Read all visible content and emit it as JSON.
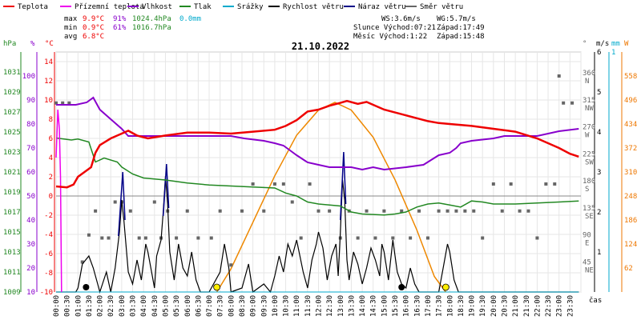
{
  "title": "21.10.2022",
  "legend": [
    {
      "key": "teplota",
      "label": "Teplota",
      "color": "#ee0000"
    },
    {
      "key": "pocitova",
      "label": "Přízemní teplota",
      "color": "#ee00ee"
    },
    {
      "key": "vlhkost",
      "label": "Vlhkost",
      "color": "#8800cc"
    },
    {
      "key": "tlak",
      "label": "Tlak",
      "color": "#228822"
    },
    {
      "key": "srazky",
      "label": "Srážky",
      "color": "#00aacc"
    },
    {
      "key": "rychlost",
      "label": "Rychlost větru",
      "color": "#000000"
    },
    {
      "key": "naraz",
      "label": "Náraz větru",
      "color": "#000088"
    },
    {
      "key": "smer",
      "label": "Směr větru",
      "color": "#666666"
    }
  ],
  "stats": {
    "max": {
      "label": "max",
      "temp": "9.9°C",
      "hum": "91%",
      "press": "1024.4hPa",
      "rain": "0.0mm"
    },
    "min": {
      "label": "min",
      "temp": "0.9°C",
      "hum": "61%",
      "press": "1016.7hPa"
    },
    "avg": {
      "label": "avg",
      "temp": "6.8°C"
    }
  },
  "info": {
    "ws": "WS:3.6m/s",
    "wg": "WG:5.7m/s",
    "slunce": "Slunce Východ:07:21",
    "slunce_zapad": "Západ:17:49",
    "mesic": "Měsíc  Východ:1:22",
    "mesic_zapad": "Západ:15:48"
  },
  "axes": {
    "hpa_unit": "hPa",
    "pct_unit": "%",
    "c_unit": "°C",
    "deg_unit": "°",
    "ms_unit": "m/s",
    "mm_unit": "mm",
    "w_unit": "W",
    "cas": "čas",
    "hpa_ticks": [
      "1031",
      "1029",
      "1027",
      "1025",
      "1023",
      "1021",
      "1019",
      "1017",
      "1015",
      "1013",
      "1011",
      "1009"
    ],
    "pct_ticks": [
      "100",
      "90",
      "80",
      "70",
      "60",
      "50",
      "40",
      "30",
      "20",
      "10"
    ],
    "c_ticks": [
      "14",
      "12",
      "10",
      "8",
      "6",
      "4",
      "2",
      "0",
      "-2",
      "-4",
      "-6",
      "-8",
      "-10"
    ],
    "dir_ticks": [
      {
        "deg": "360",
        "lab": "N"
      },
      {
        "deg": "315",
        "lab": "NW"
      },
      {
        "deg": "270",
        "lab": "W"
      },
      {
        "deg": "225",
        "lab": "SW"
      },
      {
        "deg": "180",
        "lab": "S"
      },
      {
        "deg": "135",
        "lab": "SE"
      },
      {
        "deg": "90",
        "lab": "E"
      },
      {
        "deg": "45",
        "lab": "NE"
      }
    ],
    "ms_ticks": [
      "6",
      "5",
      "4",
      "3",
      "2",
      "1"
    ],
    "mm_top": "1",
    "w_ticks": [
      "558",
      "496",
      "434",
      "372",
      "310",
      "248",
      "186",
      "124",
      "62"
    ],
    "x_ticks": [
      "00:00",
      "00:30",
      "01:00",
      "01:30",
      "02:00",
      "02:30",
      "03:00",
      "03:30",
      "04:00",
      "04:30",
      "05:00",
      "05:30",
      "06:00",
      "06:30",
      "07:00",
      "07:30",
      "08:00",
      "08:30",
      "09:00",
      "09:30",
      "10:00",
      "10:30",
      "11:00",
      "11:30",
      "12:00",
      "12:30",
      "13:00",
      "13:30",
      "14:00",
      "14:30",
      "15:00",
      "15:30",
      "16:00",
      "16:30",
      "17:00",
      "17:30",
      "18:00",
      "18:30",
      "19:00",
      "19:30",
      "20:00",
      "20:30",
      "21:00",
      "21:30",
      "22:00",
      "22:30",
      "23:00",
      "23:30"
    ]
  },
  "chart_data": {
    "type": "line",
    "x_unit": "hour",
    "temperature": [
      [
        0,
        1.0
      ],
      [
        0.5,
        0.9
      ],
      [
        0.8,
        1.2
      ],
      [
        1.0,
        2.0
      ],
      [
        1.3,
        2.5
      ],
      [
        1.6,
        3.0
      ],
      [
        1.8,
        4.5
      ],
      [
        2.0,
        5.3
      ],
      [
        2.5,
        6.0
      ],
      [
        3.0,
        6.5
      ],
      [
        3.3,
        6.8
      ],
      [
        3.7,
        6.3
      ],
      [
        4.2,
        6.0
      ],
      [
        5.0,
        6.3
      ],
      [
        6.0,
        6.6
      ],
      [
        7.0,
        6.6
      ],
      [
        8.0,
        6.5
      ],
      [
        9.0,
        6.7
      ],
      [
        10.0,
        6.9
      ],
      [
        10.5,
        7.3
      ],
      [
        11.0,
        7.9
      ],
      [
        11.5,
        8.8
      ],
      [
        12.0,
        9.0
      ],
      [
        12.5,
        9.4
      ],
      [
        13.0,
        9.7
      ],
      [
        13.3,
        9.9
      ],
      [
        13.8,
        9.6
      ],
      [
        14.2,
        9.8
      ],
      [
        14.5,
        9.5
      ],
      [
        15.0,
        9.0
      ],
      [
        15.5,
        8.7
      ],
      [
        16.0,
        8.4
      ],
      [
        16.5,
        8.1
      ],
      [
        17.0,
        7.8
      ],
      [
        17.5,
        7.6
      ],
      [
        18.0,
        7.5
      ],
      [
        19.0,
        7.3
      ],
      [
        20.0,
        7.0
      ],
      [
        21.0,
        6.7
      ],
      [
        22.0,
        6.0
      ],
      [
        23.0,
        5.0
      ],
      [
        23.5,
        4.4
      ],
      [
        23.9,
        4.1
      ]
    ],
    "apparent_temperature": [
      [
        0,
        4.0
      ],
      [
        0.08,
        9.0
      ],
      [
        0.15,
        7.0
      ],
      [
        0.2,
        2.0
      ],
      [
        0.25,
        -10
      ]
    ],
    "humidity": [
      [
        0,
        88
      ],
      [
        0.5,
        88
      ],
      [
        0.9,
        88
      ],
      [
        1.4,
        89
      ],
      [
        1.7,
        91
      ],
      [
        2.0,
        86
      ],
      [
        2.5,
        82
      ],
      [
        3.0,
        78
      ],
      [
        3.3,
        75
      ],
      [
        6.5,
        75
      ],
      [
        7.0,
        75
      ],
      [
        8.0,
        75
      ],
      [
        8.6,
        74
      ],
      [
        9.5,
        73
      ],
      [
        10.0,
        72
      ],
      [
        10.4,
        71
      ],
      [
        10.7,
        69
      ],
      [
        11.0,
        67
      ],
      [
        11.5,
        64
      ],
      [
        12.0,
        63
      ],
      [
        12.5,
        62
      ],
      [
        13.0,
        62
      ],
      [
        13.5,
        62
      ],
      [
        14.0,
        61
      ],
      [
        14.5,
        62
      ],
      [
        15.0,
        61
      ],
      [
        16.0,
        62
      ],
      [
        16.8,
        63
      ],
      [
        17.5,
        67
      ],
      [
        18.0,
        68
      ],
      [
        18.3,
        70
      ],
      [
        18.5,
        72
      ],
      [
        19.0,
        73
      ],
      [
        20.0,
        74
      ],
      [
        20.5,
        75
      ],
      [
        22.0,
        75
      ],
      [
        22.5,
        76
      ],
      [
        23.0,
        77
      ],
      [
        23.9,
        78
      ]
    ],
    "pressure": [
      [
        0,
        1024.4
      ],
      [
        0.7,
        1024.2
      ],
      [
        1.0,
        1024.3
      ],
      [
        1.5,
        1024.0
      ],
      [
        1.8,
        1022.0
      ],
      [
        2.2,
        1022.4
      ],
      [
        2.8,
        1022.0
      ],
      [
        3.0,
        1021.5
      ],
      [
        3.5,
        1020.8
      ],
      [
        4.0,
        1020.4
      ],
      [
        5.0,
        1020.2
      ],
      [
        6.0,
        1019.9
      ],
      [
        7.0,
        1019.7
      ],
      [
        8.0,
        1019.6
      ],
      [
        9.0,
        1019.5
      ],
      [
        10.0,
        1019.4
      ],
      [
        10.5,
        1018.9
      ],
      [
        11.0,
        1018.6
      ],
      [
        11.5,
        1018.0
      ],
      [
        12.0,
        1017.8
      ],
      [
        13.0,
        1017.6
      ],
      [
        13.5,
        1017.0
      ],
      [
        14.0,
        1016.8
      ],
      [
        15.0,
        1016.7
      ],
      [
        15.5,
        1016.8
      ],
      [
        16.0,
        1017.0
      ],
      [
        16.5,
        1017.5
      ],
      [
        17.0,
        1017.8
      ],
      [
        17.5,
        1017.9
      ],
      [
        18.0,
        1017.7
      ],
      [
        18.5,
        1017.5
      ],
      [
        19.0,
        1018.1
      ],
      [
        19.5,
        1018.0
      ],
      [
        20.0,
        1017.8
      ],
      [
        21.0,
        1017.8
      ],
      [
        22.0,
        1017.9
      ],
      [
        23.0,
        1018.0
      ],
      [
        23.9,
        1018.1
      ]
    ],
    "wind_speed": [
      [
        0,
        0
      ],
      [
        0.9,
        0
      ],
      [
        1.0,
        0.1
      ],
      [
        1.2,
        0.7
      ],
      [
        1.5,
        0.9
      ],
      [
        1.7,
        0.6
      ],
      [
        1.9,
        0.2
      ],
      [
        2.0,
        0
      ],
      [
        2.3,
        0.5
      ],
      [
        2.5,
        0
      ],
      [
        2.7,
        0.6
      ],
      [
        2.9,
        1.5
      ],
      [
        3.0,
        2.3
      ],
      [
        3.1,
        1.8
      ],
      [
        3.3,
        0.5
      ],
      [
        3.5,
        0.2
      ],
      [
        3.7,
        0.8
      ],
      [
        3.9,
        0.3
      ],
      [
        4.1,
        1.2
      ],
      [
        4.2,
        1.0
      ],
      [
        4.4,
        0.4
      ],
      [
        4.5,
        0.1
      ],
      [
        4.6,
        0.9
      ],
      [
        4.8,
        1.3
      ],
      [
        4.9,
        2.0
      ],
      [
        5.0,
        2.9
      ],
      [
        5.1,
        2.2
      ],
      [
        5.2,
        1.0
      ],
      [
        5.4,
        0.3
      ],
      [
        5.6,
        1.2
      ],
      [
        5.8,
        0.6
      ],
      [
        6.0,
        0.4
      ],
      [
        6.2,
        1.0
      ],
      [
        6.4,
        0.3
      ],
      [
        6.6,
        0
      ],
      [
        7.0,
        0
      ],
      [
        7.5,
        0.5
      ],
      [
        7.7,
        1.2
      ],
      [
        7.9,
        0.6
      ],
      [
        8.0,
        0
      ],
      [
        8.5,
        0.1
      ],
      [
        8.8,
        0.7
      ],
      [
        9.0,
        0
      ],
      [
        9.5,
        0.2
      ],
      [
        9.8,
        0
      ],
      [
        10.0,
        0.4
      ],
      [
        10.2,
        0.9
      ],
      [
        10.4,
        0.5
      ],
      [
        10.6,
        1.2
      ],
      [
        10.8,
        0.9
      ],
      [
        10.9,
        1.1
      ],
      [
        11.0,
        1.3
      ],
      [
        11.3,
        0.5
      ],
      [
        11.5,
        0.1
      ],
      [
        11.7,
        0.8
      ],
      [
        11.9,
        1.2
      ],
      [
        12.0,
        1.5
      ],
      [
        12.2,
        1.1
      ],
      [
        12.4,
        0.3
      ],
      [
        12.6,
        0.9
      ],
      [
        12.8,
        1.2
      ],
      [
        12.9,
        0.4
      ],
      [
        13.0,
        1.5
      ],
      [
        13.1,
        2.8
      ],
      [
        13.2,
        2.3
      ],
      [
        13.3,
        0.8
      ],
      [
        13.4,
        0.3
      ],
      [
        13.6,
        1.0
      ],
      [
        13.8,
        0.7
      ],
      [
        14.0,
        0.2
      ],
      [
        14.2,
        0.6
      ],
      [
        14.4,
        1.1
      ],
      [
        14.6,
        0.8
      ],
      [
        14.8,
        0.4
      ],
      [
        14.9,
        1.2
      ],
      [
        15.0,
        1.0
      ],
      [
        15.2,
        0.3
      ],
      [
        15.4,
        1.3
      ],
      [
        15.6,
        0.5
      ],
      [
        15.8,
        0.2
      ],
      [
        16.0,
        0.1
      ],
      [
        16.2,
        0.6
      ],
      [
        16.4,
        0.2
      ],
      [
        16.6,
        0
      ],
      [
        17.5,
        0
      ],
      [
        17.7,
        0.6
      ],
      [
        17.9,
        1.2
      ],
      [
        18.0,
        1.0
      ],
      [
        18.2,
        0.3
      ],
      [
        18.4,
        0
      ],
      [
        23.9,
        0
      ]
    ],
    "wind_gust": [
      [
        2.85,
        1.4
      ],
      [
        3.05,
        3.0
      ],
      [
        3.15,
        1.8
      ],
      [
        4.9,
        1.9
      ],
      [
        5.05,
        3.2
      ],
      [
        5.15,
        2.1
      ],
      [
        13.0,
        1.8
      ],
      [
        13.15,
        3.5
      ],
      [
        13.25,
        2.2
      ]
    ],
    "wind_direction_points": [
      [
        0.0,
        315
      ],
      [
        0.3,
        315
      ],
      [
        0.6,
        315
      ],
      [
        1.2,
        50
      ],
      [
        1.5,
        95
      ],
      [
        1.8,
        135
      ],
      [
        2.1,
        90
      ],
      [
        2.4,
        90
      ],
      [
        2.7,
        150
      ],
      [
        3.0,
        150
      ],
      [
        3.4,
        135
      ],
      [
        3.8,
        90
      ],
      [
        4.1,
        90
      ],
      [
        4.5,
        150
      ],
      [
        4.8,
        90
      ],
      [
        5.1,
        135
      ],
      [
        5.5,
        90
      ],
      [
        6.0,
        135
      ],
      [
        6.5,
        90
      ],
      [
        7.1,
        90
      ],
      [
        7.5,
        135
      ],
      [
        8.0,
        45
      ],
      [
        8.5,
        135
      ],
      [
        9.0,
        180
      ],
      [
        9.5,
        135
      ],
      [
        10.0,
        180
      ],
      [
        10.4,
        180
      ],
      [
        10.8,
        150
      ],
      [
        11.2,
        90
      ],
      [
        11.6,
        180
      ],
      [
        12.0,
        135
      ],
      [
        12.5,
        135
      ],
      [
        13.0,
        90
      ],
      [
        13.4,
        135
      ],
      [
        13.8,
        90
      ],
      [
        14.2,
        135
      ],
      [
        14.6,
        90
      ],
      [
        15.0,
        135
      ],
      [
        15.4,
        90
      ],
      [
        15.8,
        135
      ],
      [
        16.2,
        90
      ],
      [
        16.6,
        135
      ],
      [
        17.0,
        90
      ],
      [
        17.5,
        135
      ],
      [
        17.9,
        135
      ],
      [
        18.3,
        135
      ],
      [
        18.7,
        135
      ],
      [
        19.1,
        135
      ],
      [
        19.5,
        90
      ],
      [
        20.0,
        180
      ],
      [
        20.4,
        135
      ],
      [
        20.8,
        180
      ],
      [
        21.2,
        135
      ],
      [
        21.6,
        135
      ],
      [
        22.0,
        90
      ],
      [
        22.4,
        180
      ],
      [
        22.8,
        180
      ],
      [
        23.0,
        360
      ],
      [
        23.2,
        315
      ],
      [
        23.6,
        315
      ]
    ],
    "solar_radiation": [
      [
        7.35,
        0
      ],
      [
        8.0,
        60
      ],
      [
        9.0,
        180
      ],
      [
        10.0,
        300
      ],
      [
        11.0,
        405
      ],
      [
        12.0,
        470
      ],
      [
        12.75,
        490
      ],
      [
        13.5,
        470
      ],
      [
        14.5,
        400
      ],
      [
        15.5,
        290
      ],
      [
        16.5,
        160
      ],
      [
        17.3,
        40
      ],
      [
        17.82,
        0
      ]
    ],
    "rain": [
      [
        0,
        0
      ],
      [
        23.9,
        0
      ]
    ],
    "sun_markers": [
      [
        7.35,
        "sunrise"
      ],
      [
        17.82,
        "sunset"
      ]
    ],
    "moon_markers": [
      [
        1.37,
        "moonrise"
      ],
      [
        15.8,
        "moonset"
      ]
    ],
    "ranges": {
      "temp": [
        -10,
        15
      ],
      "hum": [
        10,
        110
      ],
      "press": [
        1009,
        1033
      ],
      "dir": [
        0,
        400
      ],
      "ms": [
        0,
        6
      ],
      "w": [
        0,
        620
      ]
    }
  }
}
